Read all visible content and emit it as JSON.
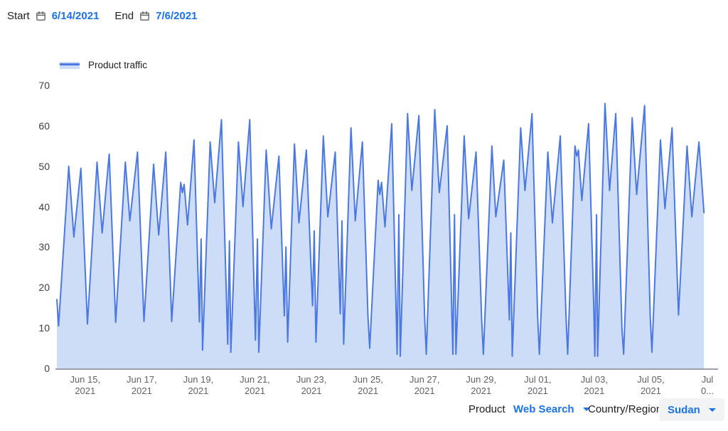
{
  "header": {
    "start_label": "Start",
    "start_date": "6/14/2021",
    "end_label": "End",
    "end_date": "7/6/2021"
  },
  "legend": {
    "label": "Product traffic"
  },
  "controls": {
    "product_label": "Product",
    "product_value": "Web Search",
    "region_label": "Country/Region",
    "region_value": "Sudan"
  },
  "colors": {
    "accent_blue": "#1a73e8",
    "line": "#4b78e3",
    "fill": "#cdddf7",
    "y_label_text": "#3c4043",
    "x_label_text": "#5f6368",
    "dark_text": "#202124",
    "axis_line": "#9aa0a6",
    "pill_bg": "#f1f3f4"
  },
  "chart_data": {
    "type": "area",
    "title": "Product traffic",
    "xlabel": "",
    "ylabel": "",
    "x_unit": "days since Jun 14, 2021 00:00 (hourly-style series)",
    "x_range": [
      0,
      23
    ],
    "ylim": [
      0,
      70
    ],
    "yticks": [
      0,
      10,
      20,
      30,
      40,
      50,
      60,
      70
    ],
    "grid": false,
    "legend_position": "top-left",
    "xticks": [
      {
        "day": 1,
        "line1": "Jun 15,",
        "line2": "2021"
      },
      {
        "day": 3,
        "line1": "Jun 17,",
        "line2": "2021"
      },
      {
        "day": 5,
        "line1": "Jun 19,",
        "line2": "2021"
      },
      {
        "day": 7,
        "line1": "Jun 21,",
        "line2": "2021"
      },
      {
        "day": 9,
        "line1": "Jun 23,",
        "line2": "2021"
      },
      {
        "day": 11,
        "line1": "Jun 25,",
        "line2": "2021"
      },
      {
        "day": 13,
        "line1": "Jun 27,",
        "line2": "2021"
      },
      {
        "day": 15,
        "line1": "Jun 29,",
        "line2": "2021"
      },
      {
        "day": 17,
        "line1": "Jul 01,",
        "line2": "2021"
      },
      {
        "day": 19,
        "line1": "Jul 03,",
        "line2": "2021"
      },
      {
        "day": 21,
        "line1": "Jul 05,",
        "line2": "2021"
      },
      {
        "day": 23,
        "line1": "Jul",
        "line2": "0..."
      }
    ],
    "points": [
      [
        0,
        17
      ],
      [
        0.06,
        10.5
      ],
      [
        0.42,
        50
      ],
      [
        0.6,
        32.5
      ],
      [
        0.85,
        49.5
      ],
      [
        1.08,
        11
      ],
      [
        1.42,
        51
      ],
      [
        1.6,
        33.5
      ],
      [
        1.85,
        53
      ],
      [
        2.08,
        11.4
      ],
      [
        2.42,
        51
      ],
      [
        2.58,
        36.5
      ],
      [
        2.85,
        53.5
      ],
      [
        3.08,
        11.6
      ],
      [
        3.42,
        50.5
      ],
      [
        3.6,
        33
      ],
      [
        3.85,
        53.5
      ],
      [
        4.06,
        11.6
      ],
      [
        4.38,
        46
      ],
      [
        4.44,
        43.5
      ],
      [
        4.5,
        45.5
      ],
      [
        4.62,
        35.5
      ],
      [
        4.85,
        56.5
      ],
      [
        5.04,
        11.5
      ],
      [
        5.1,
        32
      ],
      [
        5.15,
        4.5
      ],
      [
        5.42,
        56
      ],
      [
        5.58,
        41
      ],
      [
        5.82,
        61.5
      ],
      [
        6.04,
        6
      ],
      [
        6.1,
        31.5
      ],
      [
        6.15,
        4
      ],
      [
        6.42,
        56
      ],
      [
        6.58,
        40
      ],
      [
        6.82,
        61.5
      ],
      [
        7.02,
        7
      ],
      [
        7.09,
        32
      ],
      [
        7.14,
        4
      ],
      [
        7.4,
        54
      ],
      [
        7.58,
        34.5
      ],
      [
        7.85,
        52.5
      ],
      [
        8.04,
        13
      ],
      [
        8.1,
        30
      ],
      [
        8.16,
        6.5
      ],
      [
        8.4,
        55.5
      ],
      [
        8.56,
        36
      ],
      [
        8.82,
        54
      ],
      [
        9.04,
        15.5
      ],
      [
        9.1,
        34
      ],
      [
        9.16,
        6.5
      ],
      [
        9.42,
        57.5
      ],
      [
        9.58,
        37.5
      ],
      [
        9.84,
        53.5
      ],
      [
        10.02,
        13.5
      ],
      [
        10.08,
        36.5
      ],
      [
        10.14,
        6
      ],
      [
        10.4,
        59.5
      ],
      [
        10.55,
        36.5
      ],
      [
        10.8,
        56
      ],
      [
        11.0,
        12.8
      ],
      [
        11.06,
        5
      ],
      [
        11.36,
        46.5
      ],
      [
        11.42,
        43
      ],
      [
        11.48,
        46
      ],
      [
        11.6,
        35
      ],
      [
        11.84,
        60.5
      ],
      [
        12.03,
        3.5
      ],
      [
        12.09,
        38
      ],
      [
        12.14,
        3
      ],
      [
        12.4,
        63
      ],
      [
        12.55,
        44
      ],
      [
        12.8,
        62.5
      ],
      [
        13.0,
        13
      ],
      [
        13.06,
        3.5
      ],
      [
        13.36,
        64
      ],
      [
        13.52,
        43.5
      ],
      [
        13.8,
        60
      ],
      [
        14.0,
        3.5
      ],
      [
        14.06,
        38
      ],
      [
        14.11,
        3.5
      ],
      [
        14.4,
        57.5
      ],
      [
        14.56,
        37
      ],
      [
        14.82,
        53.5
      ],
      [
        15.02,
        12
      ],
      [
        15.08,
        3.5
      ],
      [
        15.38,
        55
      ],
      [
        15.52,
        37.5
      ],
      [
        15.8,
        51.5
      ],
      [
        16.0,
        12
      ],
      [
        16.05,
        33.5
      ],
      [
        16.1,
        3
      ],
      [
        16.4,
        59.5
      ],
      [
        16.55,
        44
      ],
      [
        16.8,
        63
      ],
      [
        17.0,
        12.5
      ],
      [
        17.06,
        3.5
      ],
      [
        17.36,
        53.5
      ],
      [
        17.52,
        36
      ],
      [
        17.8,
        57.5
      ],
      [
        18.0,
        13
      ],
      [
        18.06,
        3.5
      ],
      [
        18.32,
        55
      ],
      [
        18.38,
        52.5
      ],
      [
        18.44,
        54
      ],
      [
        18.56,
        41.5
      ],
      [
        18.8,
        60.5
      ],
      [
        18.98,
        16
      ],
      [
        19.02,
        3
      ],
      [
        19.08,
        38
      ],
      [
        19.12,
        3
      ],
      [
        19.38,
        65.5
      ],
      [
        19.54,
        44
      ],
      [
        19.76,
        63
      ],
      [
        19.98,
        9.5
      ],
      [
        20.04,
        3.5
      ],
      [
        20.34,
        62
      ],
      [
        20.5,
        43
      ],
      [
        20.78,
        65
      ],
      [
        20.98,
        13
      ],
      [
        21.04,
        4
      ],
      [
        21.34,
        56.5
      ],
      [
        21.5,
        39.5
      ],
      [
        21.75,
        59.5
      ],
      [
        21.98,
        13.2
      ],
      [
        22.28,
        55
      ],
      [
        22.45,
        37.5
      ],
      [
        22.7,
        56
      ],
      [
        22.88,
        38.5
      ]
    ]
  }
}
